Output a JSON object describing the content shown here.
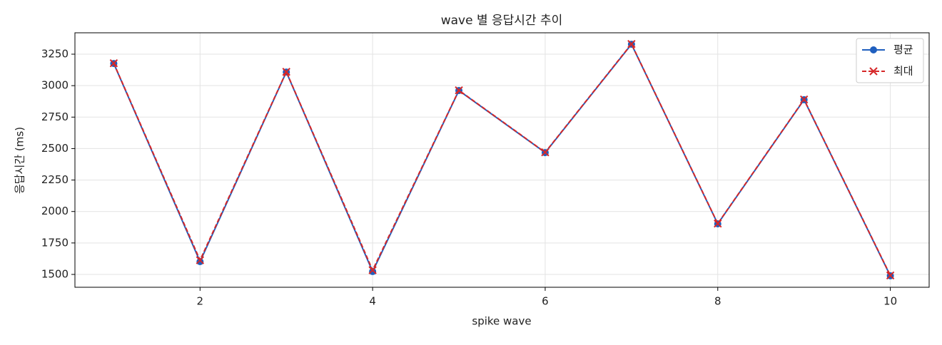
{
  "chart_data": {
    "type": "line",
    "title": "wave 별 응답시간 추이",
    "xlabel": "spike wave",
    "ylabel": "응답시간 (ms)",
    "x": [
      1,
      2,
      3,
      4,
      5,
      6,
      7,
      8,
      9,
      10
    ],
    "series": [
      {
        "name": "평균",
        "color": "#1f5fbf",
        "marker": "circle",
        "dash": false,
        "values": [
          3176,
          1602,
          3108,
          1523,
          2961,
          2468,
          3329,
          1902,
          2888,
          1489
        ]
      },
      {
        "name": "최대",
        "color": "#d62728",
        "marker": "x",
        "dash": true,
        "values": [
          3178,
          1613,
          3110,
          1534,
          2963,
          2470,
          3331,
          1904,
          2890,
          1492
        ]
      }
    ],
    "xlim": [
      0.55,
      10.45
    ],
    "xticks": [
      2,
      4,
      6,
      8,
      10
    ],
    "ylim": [
      1398,
      3420
    ],
    "yticks": [
      1500,
      1750,
      2000,
      2250,
      2500,
      2750,
      3000,
      3250
    ],
    "grid": true,
    "legend": "upper-right"
  }
}
